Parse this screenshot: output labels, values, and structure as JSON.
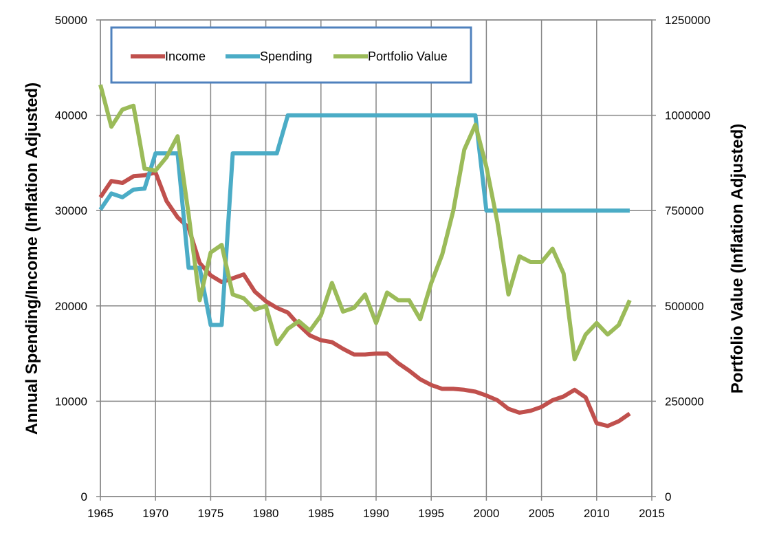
{
  "chart_data": {
    "type": "line",
    "title": "",
    "xlabel": "",
    "ylabel": "Annual Spending/Income (Inflation Adjusted)",
    "y2label": "Portfolio Value (Inflation Adjusted)",
    "xlim": [
      1965,
      2015
    ],
    "xticks": [
      1965,
      1970,
      1975,
      1980,
      1985,
      1990,
      1995,
      2000,
      2005,
      2010,
      2015
    ],
    "ylim": [
      0,
      50000
    ],
    "yticks": [
      0,
      10000,
      20000,
      30000,
      40000,
      50000
    ],
    "y2lim": [
      0,
      1250000
    ],
    "y2ticks": [
      0,
      250000,
      500000,
      750000,
      1000000,
      1250000
    ],
    "grid": "on",
    "legend_position": "top-left",
    "x": [
      1965,
      1966,
      1967,
      1968,
      1969,
      1970,
      1971,
      1972,
      1973,
      1974,
      1975,
      1976,
      1977,
      1978,
      1979,
      1980,
      1981,
      1982,
      1983,
      1984,
      1985,
      1986,
      1987,
      1988,
      1989,
      1990,
      1991,
      1992,
      1993,
      1994,
      1995,
      1996,
      1997,
      1998,
      1999,
      2000,
      2001,
      2002,
      2003,
      2004,
      2005,
      2006,
      2007,
      2008,
      2009,
      2010,
      2011,
      2012,
      2013
    ],
    "series": [
      {
        "name": "Income",
        "axis": "left",
        "color": "#c0504d",
        "values": [
          31400,
          33100,
          32900,
          33600,
          33700,
          34000,
          31000,
          29300,
          28200,
          24500,
          23200,
          22500,
          22900,
          23300,
          21500,
          20500,
          19800,
          19300,
          18000,
          16900,
          16400,
          16200,
          15500,
          14900,
          14900,
          15000,
          15000,
          14000,
          13200,
          12300,
          11700,
          11300,
          11300,
          11200,
          11000,
          10600,
          10100,
          9200,
          8800,
          9000,
          9400,
          10100,
          10500,
          11200,
          10400,
          7700,
          7400,
          7900,
          8700
        ]
      },
      {
        "name": "Spending",
        "axis": "left",
        "color": "#4bacc6",
        "values": [
          30100,
          31800,
          31400,
          32200,
          32300,
          36000,
          36000,
          36000,
          24000,
          24000,
          18000,
          18000,
          36000,
          36000,
          36000,
          36000,
          36000,
          40000,
          40000,
          40000,
          40000,
          40000,
          40000,
          40000,
          40000,
          40000,
          40000,
          40000,
          40000,
          40000,
          40000,
          40000,
          40000,
          40000,
          40000,
          30000,
          30000,
          30000,
          30000,
          30000,
          30000,
          30000,
          30000,
          30000,
          30000,
          30000,
          30000,
          30000,
          30000
        ]
      },
      {
        "name": "Portfolio Value",
        "axis": "right",
        "color": "#9bbb59",
        "values": [
          1080000,
          970000,
          1015000,
          1025000,
          860000,
          855000,
          890000,
          945000,
          740000,
          515000,
          640000,
          660000,
          530000,
          520000,
          490000,
          500000,
          400000,
          440000,
          460000,
          435000,
          475000,
          560000,
          485000,
          495000,
          530000,
          455000,
          535000,
          515000,
          515000,
          465000,
          560000,
          635000,
          750000,
          910000,
          975000,
          865000,
          720000,
          530000,
          630000,
          615000,
          615000,
          650000,
          585000,
          360000,
          425000,
          455000,
          425000,
          450000,
          515000
        ]
      }
    ]
  }
}
